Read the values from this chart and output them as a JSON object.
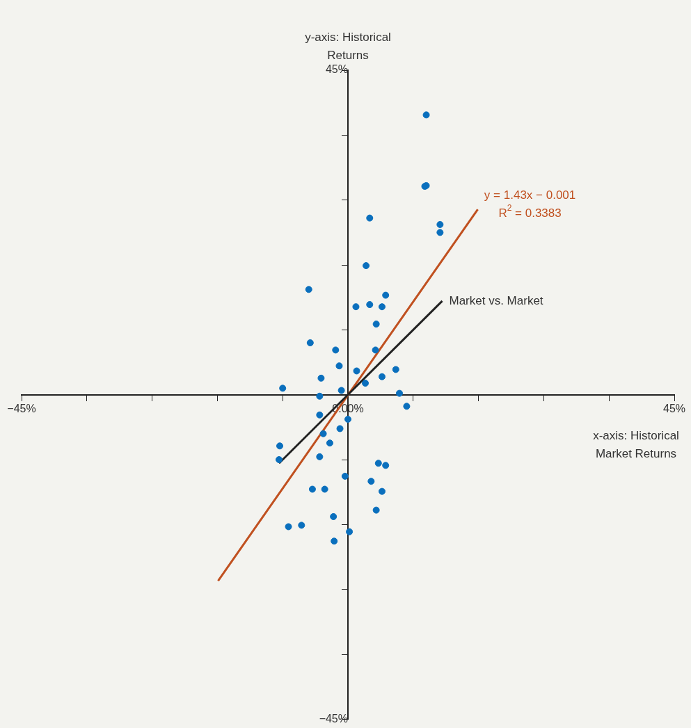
{
  "chart_data": {
    "type": "scatter",
    "xlabel": "x-axis: Historical Market Returns",
    "ylabel": "y-axis: Historical Returns",
    "xlim": [
      -45,
      45
    ],
    "ylim": [
      -45,
      45
    ],
    "xticks": [
      {
        "value": -45,
        "label": "−45%"
      },
      {
        "value": -36,
        "label": null
      },
      {
        "value": -27,
        "label": null
      },
      {
        "value": -18,
        "label": null
      },
      {
        "value": -9,
        "label": null
      },
      {
        "value": 0,
        "label": "0.00%"
      },
      {
        "value": 9,
        "label": null
      },
      {
        "value": 18,
        "label": null
      },
      {
        "value": 27,
        "label": null
      },
      {
        "value": 36,
        "label": null
      },
      {
        "value": 45,
        "label": "45%"
      }
    ],
    "yticks": [
      {
        "value": -45,
        "label": "−45%"
      },
      {
        "value": -36,
        "label": null
      },
      {
        "value": -27,
        "label": null
      },
      {
        "value": -18,
        "label": null
      },
      {
        "value": -9,
        "label": null
      },
      {
        "value": 9,
        "label": null
      },
      {
        "value": 18,
        "label": null
      },
      {
        "value": 27,
        "label": null
      },
      {
        "value": 36,
        "label": null
      },
      {
        "value": 45,
        "label": "45%"
      }
    ],
    "series": [
      {
        "type": "scatter",
        "marker": "circle",
        "color": "#0a6fbd",
        "x": [
          10.8,
          10.6,
          10.8,
          3.0,
          12.7,
          12.7,
          2.5,
          -5.4,
          5.2,
          1.1,
          3.0,
          4.7,
          3.9,
          -5.2,
          -1.7,
          3.8,
          -1.2,
          1.2,
          6.6,
          -3.7,
          4.7,
          2.4,
          -9.0,
          -0.9,
          7.1,
          -3.9,
          8.1,
          -3.9,
          0.0,
          -1.1,
          -3.4,
          -2.5,
          -9.4,
          -9.5,
          -3.9,
          4.2,
          5.2,
          -0.4,
          3.2,
          -4.9,
          -3.2,
          4.7,
          3.9,
          -2.0,
          -8.2,
          -6.4,
          0.2,
          -1.9
        ],
        "values": [
          38.8,
          28.9,
          29.0,
          24.5,
          23.6,
          22.5,
          17.9,
          14.6,
          13.8,
          12.2,
          12.5,
          12.2,
          9.8,
          7.2,
          6.2,
          6.2,
          4.0,
          3.3,
          3.5,
          2.3,
          2.5,
          1.6,
          0.9,
          0.6,
          0.2,
          -0.2,
          -1.6,
          -2.8,
          -3.4,
          -4.7,
          -5.4,
          -6.7,
          -7.1,
          -9.0,
          -8.6,
          -9.5,
          -9.8,
          -11.3,
          -12.0,
          -13.1,
          -13.1,
          -13.4,
          -16.0,
          -16.9,
          -18.3,
          -18.1,
          -19.0,
          -20.3
        ]
      },
      {
        "type": "line",
        "marker": "none",
        "name": "Market vs. Market",
        "color": "#222222",
        "x": [
          -9.5,
          13.0
        ],
        "values": [
          -9.5,
          13.0
        ]
      },
      {
        "type": "line",
        "marker": "none",
        "color": "#c0501f",
        "x": [
          -17.9,
          17.9
        ],
        "values": [
          -25.8,
          25.7
        ]
      }
    ],
    "annotations": [
      {
        "text": "y = 1.43x − 0.001",
        "x": 17.9,
        "y": 25.7
      },
      {
        "text": "R$^{2}$ = 0.3383",
        "x": 17.9,
        "y": 25.7
      }
    ]
  }
}
